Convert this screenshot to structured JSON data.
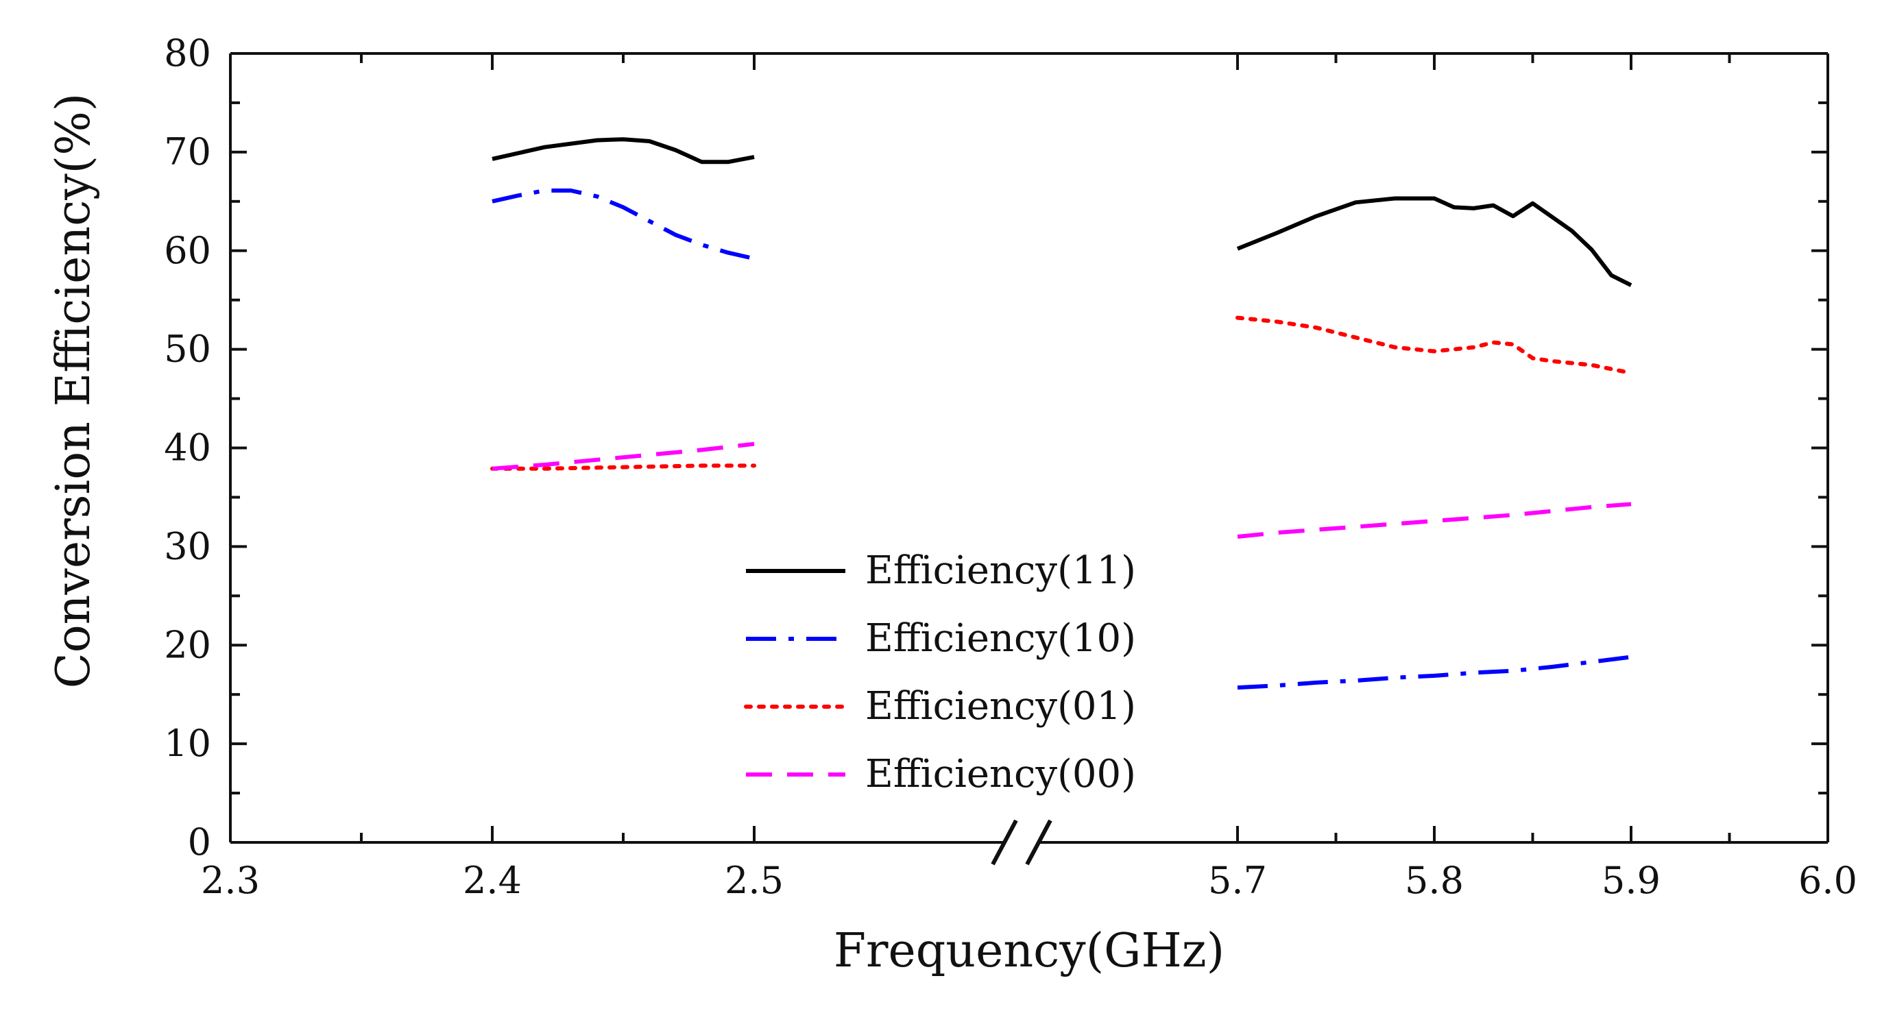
{
  "chart_data": {
    "type": "line",
    "title": "",
    "xlabel": "Frequency(GHz)",
    "ylabel": "Conversion Efficiency(%)",
    "x_ticks": [
      "2.3",
      "2.4",
      "2.5",
      "5.7",
      "5.8",
      "5.9",
      "6.0"
    ],
    "y_ticks": [
      "0",
      "10",
      "20",
      "30",
      "40",
      "50",
      "60",
      "70",
      "80"
    ],
    "ylim": [
      0,
      80
    ],
    "xlim": [
      2.3,
      6.0
    ],
    "axis_break": [
      2.5,
      5.7
    ],
    "grid": false,
    "legend_position": "center",
    "series": [
      {
        "name": "Efficiency(11)",
        "color": "#000000",
        "style": "solid",
        "segments": [
          {
            "x": [
              2.4,
              2.42,
              2.44,
              2.45,
              2.46,
              2.47,
              2.48,
              2.49,
              2.5
            ],
            "y": [
              69.3,
              70.5,
              71.2,
              71.3,
              71.1,
              70.2,
              69.0,
              69.0,
              69.5
            ]
          },
          {
            "x": [
              5.7,
              5.72,
              5.74,
              5.76,
              5.78,
              5.8,
              5.81,
              5.82,
              5.83,
              5.84,
              5.85,
              5.86,
              5.87,
              5.88,
              5.89,
              5.9
            ],
            "y": [
              60.2,
              61.8,
              63.5,
              64.9,
              65.3,
              65.3,
              64.4,
              64.3,
              64.6,
              63.5,
              64.8,
              63.4,
              62.0,
              60.1,
              57.5,
              56.5
            ]
          }
        ]
      },
      {
        "name": "Efficiency(10)",
        "color": "#0000ff",
        "style": "dashdot",
        "segments": [
          {
            "x": [
              2.4,
              2.41,
              2.42,
              2.43,
              2.44,
              2.45,
              2.46,
              2.47,
              2.48,
              2.49,
              2.5
            ],
            "y": [
              65.0,
              65.6,
              66.1,
              66.1,
              65.5,
              64.4,
              63.0,
              61.6,
              60.6,
              59.8,
              59.2
            ]
          },
          {
            "x": [
              5.7,
              5.72,
              5.74,
              5.76,
              5.78,
              5.8,
              5.82,
              5.84,
              5.86,
              5.88,
              5.9
            ],
            "y": [
              15.7,
              15.9,
              16.2,
              16.4,
              16.7,
              16.9,
              17.2,
              17.4,
              17.8,
              18.3,
              18.8
            ]
          }
        ]
      },
      {
        "name": "Efficiency(01)",
        "color": "#ff0000",
        "style": "dotted",
        "segments": [
          {
            "x": [
              2.4,
              2.42,
              2.44,
              2.46,
              2.48,
              2.5
            ],
            "y": [
              37.9,
              37.9,
              38.0,
              38.1,
              38.2,
              38.2
            ]
          },
          {
            "x": [
              5.7,
              5.72,
              5.74,
              5.76,
              5.78,
              5.8,
              5.82,
              5.83,
              5.84,
              5.85,
              5.86,
              5.88,
              5.9
            ],
            "y": [
              53.2,
              52.8,
              52.2,
              51.2,
              50.2,
              49.8,
              50.2,
              50.7,
              50.5,
              49.1,
              48.8,
              48.4,
              47.6
            ]
          }
        ]
      },
      {
        "name": "Efficiency(00)",
        "color": "#ff00ff",
        "style": "dashed",
        "segments": [
          {
            "x": [
              2.4,
              2.42,
              2.44,
              2.46,
              2.48,
              2.5
            ],
            "y": [
              37.9,
              38.3,
              38.8,
              39.3,
              39.8,
              40.4
            ]
          },
          {
            "x": [
              5.7,
              5.72,
              5.74,
              5.76,
              5.78,
              5.8,
              5.82,
              5.84,
              5.86,
              5.88,
              5.9
            ],
            "y": [
              31.0,
              31.4,
              31.7,
              32.0,
              32.3,
              32.6,
              32.9,
              33.2,
              33.6,
              34.0,
              34.3
            ]
          }
        ]
      }
    ]
  }
}
